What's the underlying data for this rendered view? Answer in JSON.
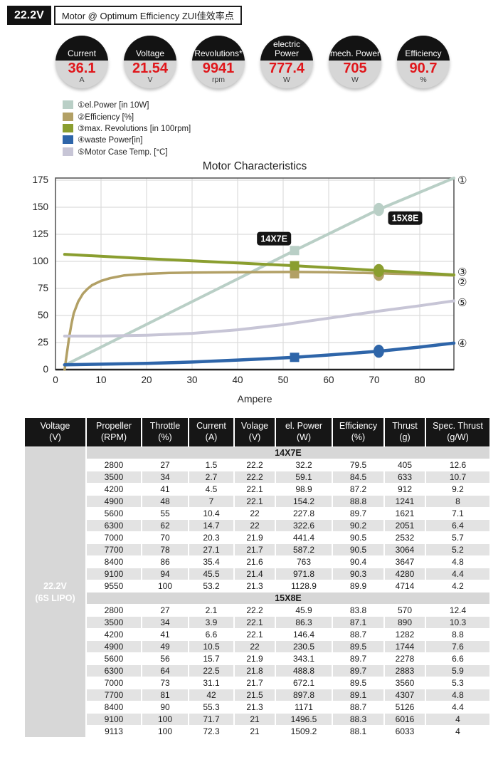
{
  "header": {
    "voltage_chip": "22.2V",
    "title": "Motor @ Optimum Efficiency ZUI佳效率点"
  },
  "badges": [
    {
      "label": "Current",
      "value": "36.1",
      "unit": "A"
    },
    {
      "label": "Voltage",
      "value": "21.54",
      "unit": "V"
    },
    {
      "label": "Revolutions*",
      "value": "9941",
      "unit": "rpm"
    },
    {
      "label": "electric Power",
      "value": "777.4",
      "unit": "W"
    },
    {
      "label": "mech. Power",
      "value": "705",
      "unit": "W"
    },
    {
      "label": "Efficiency",
      "value": "90.7",
      "unit": "%"
    }
  ],
  "legend": [
    {
      "num": "①",
      "label": "el.Power [in 10W]",
      "color": "#b9cfc6"
    },
    {
      "num": "②",
      "label": "Efficiency [%]",
      "color": "#b2a065"
    },
    {
      "num": "③",
      "label": "max. Revolutions [in 100rpm]",
      "color": "#8a9e2f"
    },
    {
      "num": "④",
      "label": "waste Power[in]",
      "color": "#2e65a9"
    },
    {
      "num": "⑤",
      "label": "Motor Case Temp. [°C]",
      "color": "#c7c5d6"
    }
  ],
  "chart_data": {
    "type": "line",
    "title": "Motor Characteristics",
    "xlabel": "Ampere",
    "ylabel": "",
    "xlim": [
      0,
      87.5
    ],
    "ylim": [
      0,
      177
    ],
    "xticks": [
      0,
      10,
      20,
      30,
      40,
      50,
      60,
      70,
      80
    ],
    "yticks": [
      0,
      25,
      50,
      75,
      100,
      125,
      150,
      175
    ],
    "grid": true,
    "series": [
      {
        "num": "①",
        "name": "el.Power [in 10W]",
        "color": "#b9cfc6",
        "width": 4,
        "points": [
          [
            2,
            4
          ],
          [
            52.5,
            110
          ],
          [
            71,
            148
          ],
          [
            87.5,
            177
          ]
        ],
        "markers": [
          {
            "shape": "square",
            "x": 52.5,
            "y": 110
          },
          {
            "shape": "circle",
            "x": 71,
            "y": 148
          }
        ]
      },
      {
        "num": "②",
        "name": "Efficiency [%]",
        "color": "#b2a065",
        "width": 3.5,
        "points": [
          [
            2,
            0
          ],
          [
            2.5,
            15
          ],
          [
            3,
            30
          ],
          [
            3.5,
            42
          ],
          [
            4,
            52
          ],
          [
            5,
            63
          ],
          [
            6,
            70
          ],
          [
            7,
            74.5
          ],
          [
            8,
            78
          ],
          [
            10,
            82
          ],
          [
            12,
            84.5
          ],
          [
            15,
            87
          ],
          [
            20,
            88.5
          ],
          [
            25,
            89.3
          ],
          [
            30,
            89.7
          ],
          [
            40,
            90
          ],
          [
            52.5,
            90.2
          ],
          [
            60,
            90
          ],
          [
            71,
            89
          ],
          [
            80,
            88
          ],
          [
            87.5,
            87
          ]
        ],
        "markers": [
          {
            "shape": "square",
            "x": 52.5,
            "y": 88.5
          },
          {
            "shape": "circle",
            "x": 71,
            "y": 88
          }
        ]
      },
      {
        "num": "③",
        "name": "max. Revolutions [in 100rpm]",
        "color": "#8a9e2f",
        "width": 4,
        "points": [
          [
            2,
            106.5
          ],
          [
            20,
            102.5
          ],
          [
            40,
            98.5
          ],
          [
            52.5,
            96
          ],
          [
            71,
            91.5
          ],
          [
            87.5,
            87.5
          ]
        ],
        "markers": [
          {
            "shape": "square",
            "x": 52.5,
            "y": 96
          },
          {
            "shape": "circle",
            "x": 71,
            "y": 91.5
          }
        ]
      },
      {
        "num": "④",
        "name": "waste Power[in]",
        "color": "#2e65a9",
        "width": 4.5,
        "points": [
          [
            2,
            4.5
          ],
          [
            10,
            5
          ],
          [
            20,
            5.8
          ],
          [
            30,
            7
          ],
          [
            40,
            8.8
          ],
          [
            52.5,
            11.3
          ],
          [
            60,
            13.5
          ],
          [
            71,
            17
          ],
          [
            80,
            20.8
          ],
          [
            87.5,
            24.5
          ]
        ],
        "markers": [
          {
            "shape": "square",
            "x": 52.5,
            "y": 11.3
          },
          {
            "shape": "circle",
            "x": 71,
            "y": 17
          }
        ]
      },
      {
        "num": "⑤",
        "name": "Motor Case Temp. [°C]",
        "color": "#c7c5d6",
        "width": 4,
        "points": [
          [
            2,
            31
          ],
          [
            10,
            31
          ],
          [
            20,
            31.8
          ],
          [
            30,
            33.5
          ],
          [
            40,
            36.8
          ],
          [
            50,
            41.5
          ],
          [
            60,
            47.5
          ],
          [
            71,
            54
          ],
          [
            80,
            59
          ],
          [
            87.5,
            63.5
          ]
        ],
        "markers": []
      }
    ],
    "annotations": [
      {
        "text": "14X7E",
        "x": 48,
        "y": 121
      },
      {
        "text": "15X8E",
        "x": 76.8,
        "y": 140
      }
    ],
    "right_labels": [
      {
        "char": "①",
        "y": 175
      },
      {
        "char": "③",
        "y": 90
      },
      {
        "char": "②",
        "y": 81
      },
      {
        "char": "⑤",
        "y": 62
      },
      {
        "char": "④",
        "y": 24
      }
    ],
    "legend_position": "above-left"
  },
  "table": {
    "voltage_cell": "22.2V\n(6S LIPO)",
    "headers": [
      {
        "l1": "Voltage",
        "l2": "(V)"
      },
      {
        "l1": "Propeller",
        "l2": "(RPM)"
      },
      {
        "l1": "Throttle",
        "l2": "(%)"
      },
      {
        "l1": "Current",
        "l2": "(A)"
      },
      {
        "l1": "Volage",
        "l2": "(V)"
      },
      {
        "l1": "el. Power",
        "l2": "(W)"
      },
      {
        "l1": "Efficiency",
        "l2": "(%)"
      },
      {
        "l1": "Thrust",
        "l2": "(g)"
      },
      {
        "l1": "Spec. Thrust",
        "l2": "(g/W)"
      }
    ],
    "sections": [
      {
        "name": "14X7E",
        "rows": [
          [
            "2800",
            "27",
            "1.5",
            "22.2",
            "32.2",
            "79.5",
            "405",
            "12.6"
          ],
          [
            "3500",
            "34",
            "2.7",
            "22.2",
            "59.1",
            "84.5",
            "633",
            "10.7"
          ],
          [
            "4200",
            "41",
            "4.5",
            "22.1",
            "98.9",
            "87.2",
            "912",
            "9.2"
          ],
          [
            "4900",
            "48",
            "7",
            "22.1",
            "154.2",
            "88.8",
            "1241",
            "8"
          ],
          [
            "5600",
            "55",
            "10.4",
            "22",
            "227.8",
            "89.7",
            "1621",
            "7.1"
          ],
          [
            "6300",
            "62",
            "14.7",
            "22",
            "322.6",
            "90.2",
            "2051",
            "6.4"
          ],
          [
            "7000",
            "70",
            "20.3",
            "21.9",
            "441.4",
            "90.5",
            "2532",
            "5.7"
          ],
          [
            "7700",
            "78",
            "27.1",
            "21.7",
            "587.2",
            "90.5",
            "3064",
            "5.2"
          ],
          [
            "8400",
            "86",
            "35.4",
            "21.6",
            "763",
            "90.4",
            "3647",
            "4.8"
          ],
          [
            "9100",
            "94",
            "45.5",
            "21.4",
            "971.8",
            "90.3",
            "4280",
            "4.4"
          ],
          [
            "9550",
            "100",
            "53.2",
            "21.3",
            "1128.9",
            "89.9",
            "4714",
            "4.2"
          ]
        ]
      },
      {
        "name": "15X8E",
        "rows": [
          [
            "2800",
            "27",
            "2.1",
            "22.2",
            "45.9",
            "83.8",
            "570",
            "12.4"
          ],
          [
            "3500",
            "34",
            "3.9",
            "22.1",
            "86.3",
            "87.1",
            "890",
            "10.3"
          ],
          [
            "4200",
            "41",
            "6.6",
            "22.1",
            "146.4",
            "88.7",
            "1282",
            "8.8"
          ],
          [
            "4900",
            "49",
            "10.5",
            "22",
            "230.5",
            "89.5",
            "1744",
            "7.6"
          ],
          [
            "5600",
            "56",
            "15.7",
            "21.9",
            "343.1",
            "89.7",
            "2278",
            "6.6"
          ],
          [
            "6300",
            "64",
            "22.5",
            "21.8",
            "488.8",
            "89.7",
            "2883",
            "5.9"
          ],
          [
            "7000",
            "73",
            "31.1",
            "21.7",
            "672.1",
            "89.5",
            "3560",
            "5.3"
          ],
          [
            "7700",
            "81",
            "42",
            "21.5",
            "897.8",
            "89.1",
            "4307",
            "4.8"
          ],
          [
            "8400",
            "90",
            "55.3",
            "21.3",
            "1171",
            "88.7",
            "5126",
            "4.4"
          ],
          [
            "9100",
            "100",
            "71.7",
            "21",
            "1496.5",
            "88.3",
            "6016",
            "4"
          ],
          [
            "9113",
            "100",
            "72.3",
            "21",
            "1509.2",
            "88.1",
            "6033",
            "4"
          ]
        ]
      }
    ]
  }
}
